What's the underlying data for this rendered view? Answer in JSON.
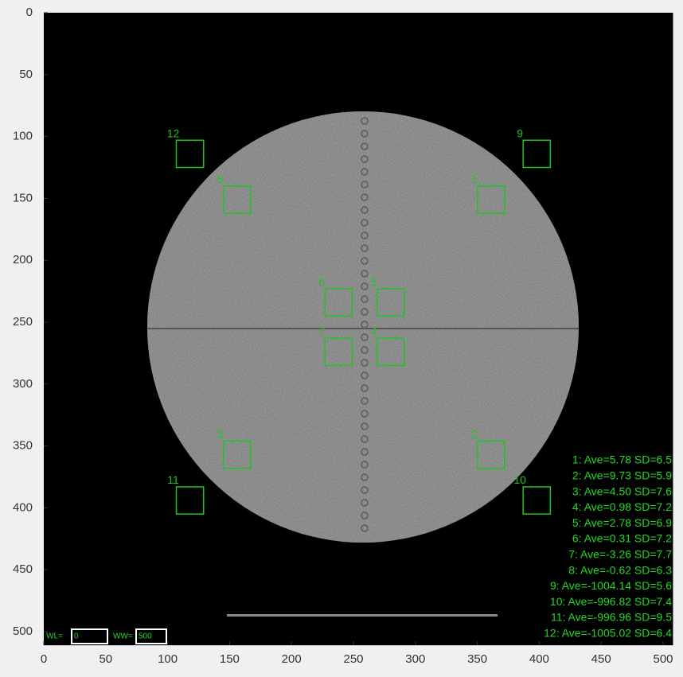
{
  "axes": {
    "xlim": [
      0,
      508
    ],
    "ylim": [
      0,
      511
    ],
    "xticks": [
      0,
      50,
      100,
      150,
      200,
      250,
      300,
      350,
      400,
      450,
      500
    ],
    "yticks": [
      0,
      50,
      100,
      150,
      200,
      250,
      300,
      350,
      400,
      450,
      500
    ]
  },
  "rois": [
    {
      "label": "1",
      "x": 361,
      "y": 151
    },
    {
      "label": "2",
      "x": 361,
      "y": 357
    },
    {
      "label": "3",
      "x": 156,
      "y": 357
    },
    {
      "label": "4",
      "x": 280,
      "y": 274
    },
    {
      "label": "5",
      "x": 280,
      "y": 234
    },
    {
      "label": "6",
      "x": 238,
      "y": 234
    },
    {
      "label": "7",
      "x": 238,
      "y": 274
    },
    {
      "label": "8",
      "x": 156,
      "y": 151
    },
    {
      "label": "9",
      "x": 398,
      "y": 114
    },
    {
      "label": "10",
      "x": 398,
      "y": 394
    },
    {
      "label": "11",
      "x": 118,
      "y": 394
    },
    {
      "label": "12",
      "x": 118,
      "y": 114
    }
  ],
  "stats": [
    "1: Ave=5.78 SD=6.5",
    "2: Ave=9.73 SD=5.9",
    "3: Ave=4.50 SD=7.6",
    "4: Ave=0.98 SD=7.2",
    "5: Ave=2.78 SD=6.9",
    "6: Ave=0.31 SD=7.2",
    "7: Ave=-3.26 SD=7.7",
    "8: Ave=-0.62 SD=6.3",
    "9: Ave=-1004.14 SD=5.6",
    "10: Ave=-996.82 SD=7.4",
    "11: Ave=-996.96 SD=9.5",
    "12: Ave=-1005.02 SD=6.4"
  ],
  "window": {
    "wl_label": "WL=",
    "wl": 0,
    "ww_label": "WW=",
    "ww": 500
  }
}
